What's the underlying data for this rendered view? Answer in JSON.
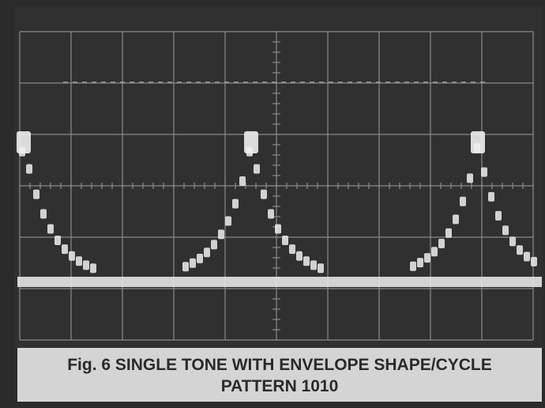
{
  "figure": {
    "caption": {
      "line1": "Fig. 6  SINGLE TONE WITH ENVELOPE SHAPE/CYCLE",
      "line2": "PATTERN 1010"
    }
  }
}
